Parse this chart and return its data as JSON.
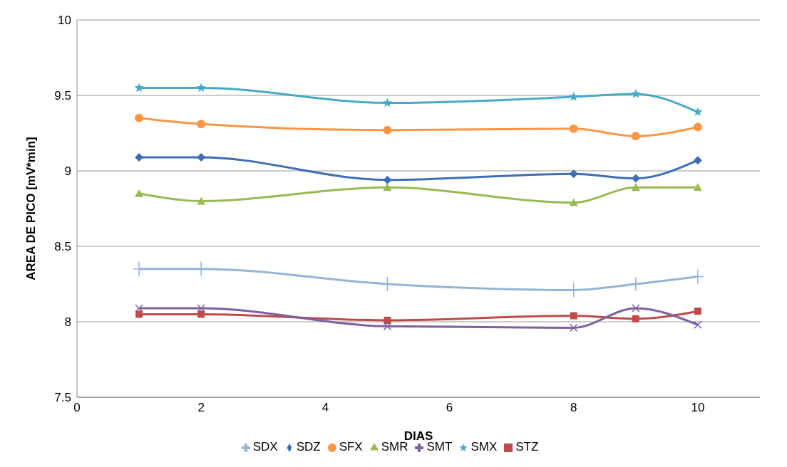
{
  "chart_data": {
    "type": "line",
    "xlabel": "DIAS",
    "ylabel": "AREA DE PICO  [mV*min]",
    "x": [
      1,
      2,
      5,
      8,
      9,
      10
    ],
    "series": [
      {
        "name": "SDZ",
        "color": "#3e6db5",
        "marker": "diamond",
        "values": [
          9.09,
          9.09,
          8.94,
          8.98,
          8.95,
          9.07
        ]
      },
      {
        "name": "STZ",
        "color": "#be4b48",
        "marker": "square",
        "values": [
          8.05,
          8.05,
          8.01,
          8.04,
          8.02,
          8.07
        ]
      },
      {
        "name": "SMR",
        "color": "#98b954",
        "marker": "triangle",
        "values": [
          8.85,
          8.8,
          8.89,
          8.79,
          8.89,
          8.89
        ]
      },
      {
        "name": "SMT",
        "color": "#7d60a0",
        "marker": "cross",
        "values": [
          8.09,
          8.09,
          7.97,
          7.96,
          8.09,
          7.98
        ]
      },
      {
        "name": "SMX",
        "color": "#46aac5",
        "marker": "star",
        "values": [
          9.55,
          9.55,
          9.45,
          9.49,
          9.51,
          9.39
        ]
      },
      {
        "name": "SFX",
        "color": "#f79646",
        "marker": "circle",
        "values": [
          9.35,
          9.31,
          9.27,
          9.28,
          9.23,
          9.29
        ]
      },
      {
        "name": "SDX",
        "color": "#95b3d7",
        "marker": "plus",
        "values": [
          8.35,
          8.35,
          8.25,
          8.21,
          8.25,
          8.3
        ]
      }
    ],
    "xlim": [
      0,
      11
    ],
    "xticks": [
      0,
      2,
      4,
      6,
      8,
      10
    ],
    "ylim": [
      7.5,
      10
    ],
    "yticks": [
      7.5,
      8,
      8.5,
      9,
      9.5,
      10
    ],
    "grid": "y",
    "legend": "bottom"
  }
}
